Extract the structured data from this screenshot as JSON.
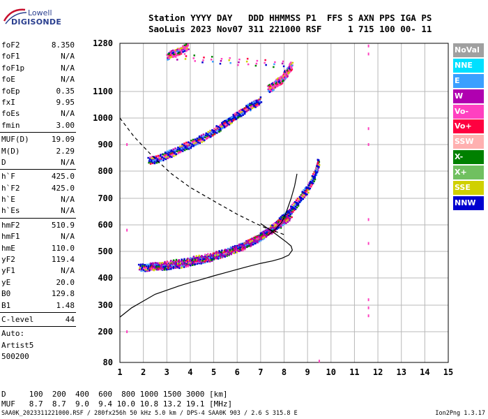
{
  "logo": {
    "line1": "Lowell",
    "line2": "DIGISONDE"
  },
  "header": {
    "line1": "Station YYYY DAY   DDD HHMMSS P1  FFS S AXN PPS IGA PS",
    "line2": "SaoLuis 2023 Nov07 311 221000 RSF     1 715 100 00- 11"
  },
  "params": {
    "groups": [
      [
        [
          "foF2",
          "8.350"
        ],
        [
          "foF1",
          "N/A"
        ],
        [
          "foF1p",
          "N/A"
        ],
        [
          "foE",
          "N/A"
        ],
        [
          "foEp",
          "0.35"
        ],
        [
          "fxI",
          "9.95"
        ],
        [
          "foEs",
          "N/A"
        ],
        [
          "fmin",
          "3.00"
        ]
      ],
      [
        [
          "MUF(D)",
          "19.09"
        ],
        [
          "M(D)",
          "2.29"
        ],
        [
          "D",
          "N/A"
        ]
      ],
      [
        [
          "h`F",
          "425.0"
        ],
        [
          "h`F2",
          "425.0"
        ],
        [
          "h`E",
          "N/A"
        ],
        [
          "h`Es",
          "N/A"
        ]
      ],
      [
        [
          "hmF2",
          "510.9"
        ],
        [
          "hmF1",
          "N/A"
        ],
        [
          "hmE",
          "110.0"
        ],
        [
          "yF2",
          "119.4"
        ],
        [
          "yF1",
          "N/A"
        ],
        [
          "yE",
          "20.0"
        ],
        [
          "B0",
          "129.8"
        ],
        [
          "B1",
          "1.48"
        ]
      ],
      [
        [
          "C-level",
          "44"
        ]
      ]
    ],
    "auto": [
      "Auto:",
      "Artist5",
      "500200"
    ]
  },
  "legend": [
    {
      "label": "NoVal",
      "color": "#a0a0a0"
    },
    {
      "label": "NNE",
      "color": "#00e0ff"
    },
    {
      "label": "E",
      "color": "#3ba0ff"
    },
    {
      "label": "W",
      "color": "#b000b0"
    },
    {
      "label": "Vo-",
      "color": "#ff40c0"
    },
    {
      "label": "Vo+",
      "color": "#ff0040"
    },
    {
      "label": "SSW",
      "color": "#ffb0b0"
    },
    {
      "label": "X-",
      "color": "#008000"
    },
    {
      "label": "X+",
      "color": "#70c060"
    },
    {
      "label": "SSE",
      "color": "#d0d000"
    },
    {
      "label": "NNW",
      "color": "#0000d0"
    }
  ],
  "dtable": {
    "d_row": "D     100  200  400  600  800 1000 1500 3000 [km]",
    "muf_row": "MUF   8.7  8.7  9.0  9.4 10.0 10.8 13.2 19.1 [MHz]"
  },
  "footer": {
    "left": "SAA0K_2023311221000.RSF / 280fx256h 50 kHz 5.0 km / DPS-4 SAA0K 903 / 2.6 S 315.8 E",
    "right": "Ion2Png 1.3.17"
  },
  "chart_data": {
    "type": "scatter",
    "title": "",
    "xlabel": "",
    "ylabel": "",
    "xlim": [
      1,
      15
    ],
    "ylim": [
      80,
      1280
    ],
    "x_ticks": [
      1,
      2,
      3,
      4,
      5,
      6,
      7,
      8,
      9,
      10,
      11,
      12,
      13,
      14,
      15
    ],
    "y_ticks": [
      80,
      200,
      300,
      400,
      500,
      600,
      700,
      800,
      900,
      1000,
      1100,
      1280
    ],
    "grid": true,
    "legend_placement": "right",
    "traces": [
      {
        "name": "O-trace F2 lower",
        "color": "#0000d0",
        "points": [
          [
            1.8,
            440
          ],
          [
            2.4,
            445
          ],
          [
            3,
            448
          ],
          [
            3.6,
            455
          ],
          [
            4.2,
            465
          ],
          [
            4.8,
            478
          ],
          [
            5.4,
            495
          ],
          [
            6,
            515
          ],
          [
            6.5,
            535
          ],
          [
            7,
            560
          ],
          [
            7.4,
            585
          ],
          [
            7.8,
            615
          ],
          [
            8.2,
            650
          ],
          [
            8.6,
            695
          ],
          [
            9,
            740
          ],
          [
            9.3,
            790
          ],
          [
            9.45,
            840
          ]
        ]
      },
      {
        "name": "X-trace F2 lower",
        "color": "#b000b0",
        "points": [
          [
            2.3,
            445
          ],
          [
            3,
            452
          ],
          [
            3.8,
            465
          ],
          [
            4.6,
            478
          ],
          [
            5.4,
            495
          ],
          [
            6.2,
            520
          ],
          [
            6.8,
            548
          ],
          [
            7.3,
            575
          ],
          [
            7.8,
            605
          ],
          [
            8.3,
            640
          ]
        ]
      },
      {
        "name": "second hop",
        "color": "#0000d0",
        "points": [
          [
            2.2,
            840
          ],
          [
            2.8,
            855
          ],
          [
            3.4,
            880
          ],
          [
            4,
            905
          ],
          [
            4.6,
            930
          ],
          [
            5.2,
            965
          ],
          [
            5.6,
            990
          ],
          [
            6,
            1015
          ],
          [
            6.5,
            1045
          ],
          [
            7,
            1070
          ]
        ]
      },
      {
        "name": "upper scatter",
        "color": "#ff40c0",
        "points": [
          [
            7.3,
            1110
          ],
          [
            7.6,
            1130
          ],
          [
            7.9,
            1150
          ],
          [
            8.1,
            1175
          ],
          [
            8.3,
            1200
          ],
          [
            3,
            1235
          ],
          [
            3.4,
            1250
          ],
          [
            3.9,
            1270
          ]
        ]
      },
      {
        "name": "sporadic vertical",
        "color": "#ff40c0",
        "points": [
          [
            11.6,
            1270
          ],
          [
            11.6,
            1240
          ],
          [
            11.6,
            960
          ],
          [
            11.6,
            900
          ],
          [
            11.6,
            620
          ],
          [
            11.6,
            530
          ],
          [
            11.6,
            320
          ],
          [
            11.6,
            290
          ],
          [
            11.6,
            260
          ],
          [
            9.5,
            85
          ],
          [
            1.3,
            200
          ],
          [
            1.3,
            580
          ],
          [
            1.3,
            900
          ]
        ]
      }
    ],
    "lines": [
      {
        "name": "profile dashed",
        "style": "dashed",
        "points": [
          [
            1,
            1000
          ],
          [
            1.6,
            930
          ],
          [
            2.4,
            855
          ],
          [
            3.2,
            790
          ],
          [
            4,
            740
          ],
          [
            5,
            690
          ],
          [
            6,
            640
          ],
          [
            6.8,
            605
          ],
          [
            7.3,
            585
          ],
          [
            7.8,
            570
          ],
          [
            8.1,
            560
          ]
        ]
      },
      {
        "name": "profile solid",
        "style": "solid",
        "points": [
          [
            1,
            255
          ],
          [
            1.5,
            290
          ],
          [
            2,
            315
          ],
          [
            2.5,
            340
          ],
          [
            3,
            355
          ],
          [
            3.5,
            370
          ],
          [
            4,
            383
          ],
          [
            4.5,
            395
          ],
          [
            5,
            408
          ],
          [
            5.5,
            420
          ],
          [
            6,
            432
          ],
          [
            6.5,
            444
          ],
          [
            7,
            455
          ],
          [
            7.5,
            464
          ],
          [
            7.9,
            474
          ],
          [
            8.2,
            486
          ],
          [
            8.35,
            505
          ],
          [
            8.3,
            520
          ],
          [
            8.1,
            535
          ],
          [
            7.8,
            555
          ],
          [
            7.5,
            575
          ],
          [
            7.2,
            593
          ],
          [
            7,
            605
          ]
        ]
      },
      {
        "name": "fit curve",
        "style": "solid",
        "points": [
          [
            7.3,
            560
          ],
          [
            7.6,
            580
          ],
          [
            7.9,
            610
          ],
          [
            8.1,
            650
          ],
          [
            8.3,
            700
          ],
          [
            8.45,
            745
          ],
          [
            8.55,
            790
          ]
        ]
      }
    ]
  }
}
